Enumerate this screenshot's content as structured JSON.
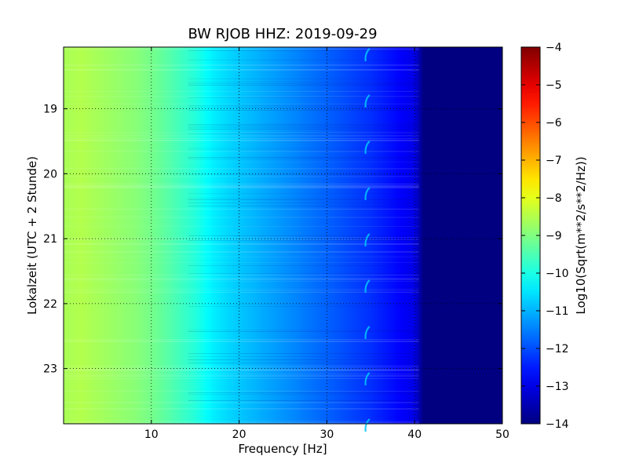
{
  "chart_data": {
    "type": "heatmap",
    "title": "BW RJOB HHZ: 2019-09-29",
    "xlabel": "Frequency [Hz]",
    "ylabel": "Lokalzeit (UTC + 2 Stunde)",
    "xlim": [
      0,
      50
    ],
    "ylim": [
      18.05,
      23.85
    ],
    "y_inverted": true,
    "x_ticks": [
      10,
      20,
      30,
      40,
      50
    ],
    "x_tick_labels": [
      "10",
      "20",
      "30",
      "40",
      "50"
    ],
    "y_ticks": [
      19,
      20,
      21,
      22,
      23
    ],
    "y_tick_labels": [
      "19",
      "20",
      "21",
      "22",
      "23"
    ],
    "grid": true,
    "colormap": "jet",
    "colorbar": {
      "label": "Log10(Sqrt(m**2/s**2/Hz))",
      "range": [
        -14,
        -4
      ],
      "ticks": [
        -4,
        -5,
        -6,
        -7,
        -8,
        -9,
        -10,
        -11,
        -12,
        -13,
        -14
      ],
      "tick_labels": [
        "−4",
        "−5",
        "−6",
        "−7",
        "−8",
        "−9",
        "−10",
        "−11",
        "−12",
        "−13",
        "−14"
      ]
    },
    "frequency_profile": {
      "frequency_hz": [
        0,
        2,
        5,
        8,
        10,
        12,
        15,
        17,
        20,
        25,
        30,
        35,
        38,
        40,
        41,
        50
      ],
      "level": [
        -8.6,
        -8.5,
        -8.7,
        -8.9,
        -9.1,
        -9.4,
        -9.9,
        -10.4,
        -10.8,
        -11.3,
        -11.8,
        -12.3,
        -12.7,
        -13.0,
        -14.0,
        -14.0
      ]
    },
    "peak_line": {
      "frequency_hz": 34.5,
      "level": -10.8
    }
  }
}
